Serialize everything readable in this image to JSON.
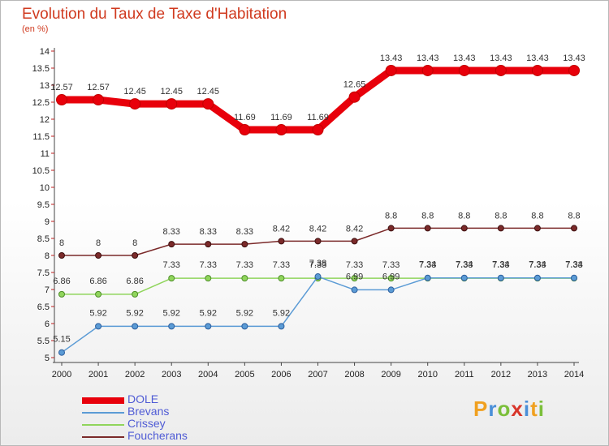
{
  "title": "Evolution du Taux de Taxe d'Habitation",
  "subtitle": "(en %)",
  "logo": {
    "letters": [
      "P",
      "r",
      "o",
      "x",
      "i",
      "t",
      "i"
    ],
    "colors": [
      "#f0a020",
      "#4a8fd8",
      "#7bbf3a",
      "#d8352a",
      "#4a8fd8",
      "#f0a020",
      "#7bbf3a"
    ]
  },
  "chart_data": {
    "type": "line",
    "title": "Evolution du Taux de Taxe d'Habitation",
    "ylabel": "(en %)",
    "xlabel": "",
    "x": [
      "2000",
      "2001",
      "2002",
      "2003",
      "2004",
      "2005",
      "2006",
      "2007",
      "2008",
      "2009",
      "2010",
      "2011",
      "2012",
      "2013",
      "2014"
    ],
    "ylim": [
      5,
      14
    ],
    "yticks": [
      "5",
      "5.5",
      "6",
      "6.5",
      "7",
      "7.5",
      "8",
      "8.5",
      "9",
      "9.5",
      "10",
      "10.5",
      "11",
      "11.5",
      "12",
      "12.5",
      "13",
      "13.5",
      "14"
    ],
    "grid": false,
    "legend": "bottom-left",
    "series": [
      {
        "name": "DOLE",
        "color": "#e8000b",
        "values": [
          12.57,
          12.57,
          12.45,
          12.45,
          12.45,
          11.69,
          11.69,
          11.69,
          12.65,
          13.43,
          13.43,
          13.43,
          13.43,
          13.43,
          13.43
        ],
        "labels": [
          "12.57",
          "12.57",
          "12.45",
          "12.45",
          "12.45",
          "11.69",
          "11.69",
          "11.69",
          "12.65",
          "13.43",
          "13.43",
          "13.43",
          "13.43",
          "13.43",
          "13.43"
        ]
      },
      {
        "name": "Brevans",
        "color": "#5b9bd5",
        "values": [
          5.15,
          5.92,
          5.92,
          5.92,
          5.92,
          5.92,
          5.92,
          7.38,
          6.99,
          6.99,
          7.34,
          7.34,
          7.34,
          7.34,
          7.34
        ],
        "labels": [
          "5.15",
          "5.92",
          "5.92",
          "5.92",
          "5.92",
          "5.92",
          "5.92",
          "7.38",
          "6.99",
          "6.99",
          "7.34",
          "7.34",
          "7.34",
          "7.34",
          "7.34"
        ]
      },
      {
        "name": "Crissey",
        "color": "#90d55c",
        "values": [
          6.86,
          6.86,
          6.86,
          7.33,
          7.33,
          7.33,
          7.33,
          7.33,
          7.33,
          7.33,
          7.33,
          7.33,
          7.33,
          7.33,
          7.33
        ],
        "labels": [
          "6.86",
          "6.86",
          "6.86",
          "7.33",
          "7.33",
          "7.33",
          "7.33",
          "7.33",
          "7.33",
          "7.33",
          "7.33",
          "7.33",
          "7.33",
          "7.33",
          "7.33"
        ]
      },
      {
        "name": "Foucherans",
        "color": "#7b2a2a",
        "values": [
          8,
          8,
          8,
          8.33,
          8.33,
          8.33,
          8.42,
          8.42,
          8.42,
          8.8,
          8.8,
          8.8,
          8.8,
          8.8,
          8.8
        ],
        "labels": [
          "8",
          "8",
          "8",
          "8.33",
          "8.33",
          "8.33",
          "8.42",
          "8.42",
          "8.42",
          "8.8",
          "8.8",
          "8.8",
          "8.8",
          "8.8",
          "8.8"
        ]
      }
    ]
  }
}
